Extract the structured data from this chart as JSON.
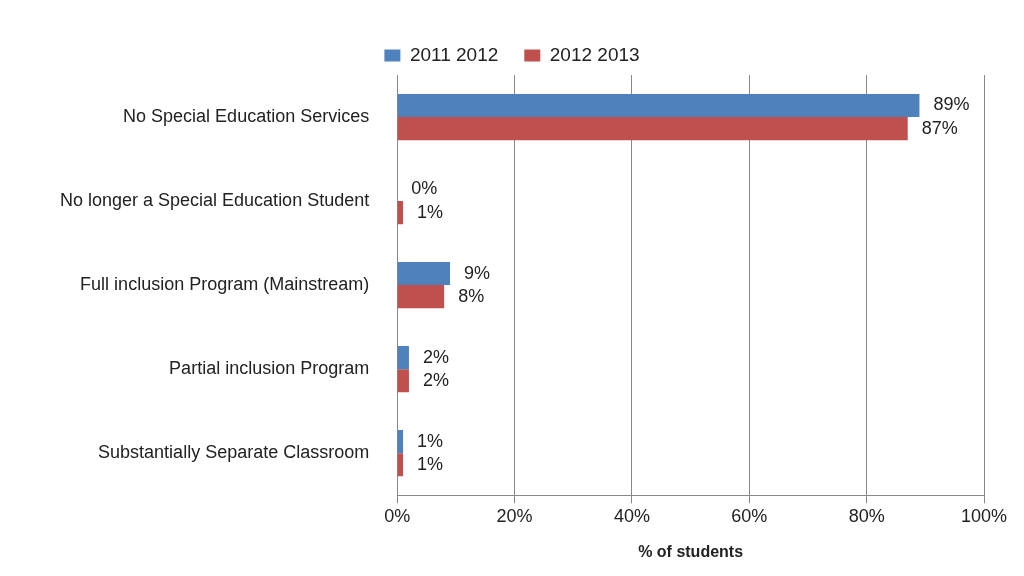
{
  "chart_data": {
    "type": "bar",
    "orientation": "horizontal",
    "xlabel": "% of students",
    "categories": [
      "No Special Education Services",
      "No longer a Special Education Student",
      "Full inclusion Program (Mainstream)",
      "Partial inclusion Program",
      "Substantially Separate Classroom"
    ],
    "series": [
      {
        "name": "2011 2012",
        "color": "#4f81bd",
        "values": [
          89,
          0,
          9,
          2,
          1
        ],
        "value_labels": [
          "89%",
          "0%",
          "9%",
          "2%",
          "1%"
        ]
      },
      {
        "name": "2012 2013",
        "color": "#c0504d",
        "values": [
          87,
          1,
          8,
          2,
          1
        ],
        "value_labels": [
          "87%",
          "1%",
          "8%",
          "2%",
          "1%"
        ]
      }
    ],
    "xlim": [
      0,
      100
    ],
    "xticks": [
      {
        "value": 0,
        "label": "0%"
      },
      {
        "value": 20,
        "label": "20%"
      },
      {
        "value": 40,
        "label": "40%"
      },
      {
        "value": 60,
        "label": "60%"
      },
      {
        "value": 80,
        "label": "80%"
      },
      {
        "value": 100,
        "label": "100%"
      }
    ],
    "grid": "x",
    "legend": "top"
  }
}
